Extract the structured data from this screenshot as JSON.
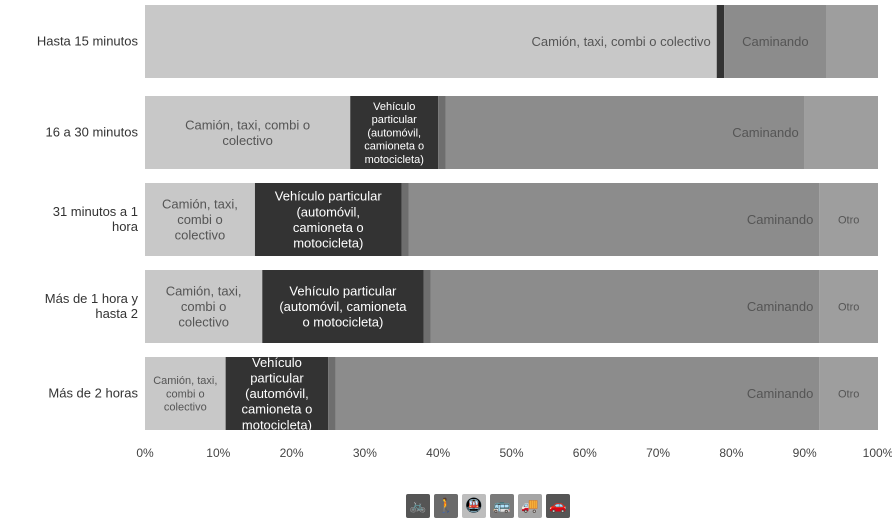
{
  "chart_data": {
    "type": "bar",
    "orientation": "horizontal",
    "stacked": true,
    "categories": [
      "Hasta 15 minutos",
      "16 a 30 minutos",
      "31 minutos a 1 hora",
      "Más de 1 hora y hasta 2",
      "Más de 2 horas"
    ],
    "series": [
      {
        "name": "Bicicleta",
        "color": "#e6e6e6",
        "values": [
          0,
          0,
          0,
          0,
          0
        ]
      },
      {
        "name": "Caminando",
        "color": "#d9d9d9",
        "values": [
          0,
          0,
          0,
          0,
          0
        ]
      },
      {
        "name": "Camión, taxi, combi o colectivo",
        "color": "#c8c8c8",
        "values": [
          78,
          28,
          15,
          16,
          11
        ],
        "label": "Camión, taxi, combi o colectivo",
        "show_label": [
          true,
          true,
          true,
          true,
          true
        ]
      },
      {
        "name": "Vehículo particular (automóvil, camioneta o motocicleta)",
        "color": "#333333",
        "values": [
          1,
          12,
          20,
          22,
          14
        ],
        "label": "Vehículo particular (automóvil, camioneta o motocicleta)",
        "show_label": [
          false,
          true,
          true,
          true,
          true
        ]
      },
      {
        "name": "Metro",
        "color": "#6e6e6e",
        "values": [
          0,
          1,
          1,
          1,
          1
        ]
      },
      {
        "name": "Caminando",
        "color": "#8c8c8c",
        "values": [
          14,
          49,
          56,
          53,
          66
        ],
        "label": "Caminando",
        "show_label": [
          true,
          true,
          true,
          true,
          true
        ]
      },
      {
        "name": "Otro",
        "color": "#9e9e9e",
        "values": [
          7,
          10,
          8,
          8,
          8
        ],
        "label": "Otro",
        "show_label": [
          false,
          false,
          true,
          true,
          true
        ]
      }
    ],
    "x_ticks": [
      "0%",
      "10%",
      "20%",
      "30%",
      "40%",
      "50%",
      "60%",
      "70%",
      "80%",
      "90%",
      "100%"
    ],
    "xlim": [
      0,
      100
    ],
    "grid": false,
    "legend": {
      "position": "bottom-center",
      "icons": [
        {
          "name": "bicycle-icon",
          "glyph": "🚲",
          "color": "#555555"
        },
        {
          "name": "walking-icon",
          "glyph": "🚶",
          "color": "#6a6a6a"
        },
        {
          "name": "metro-icon",
          "glyph": "🚇",
          "color": "#bdbdbd"
        },
        {
          "name": "bus-icon",
          "glyph": "🚌",
          "color": "#7a7a7a"
        },
        {
          "name": "truck-icon",
          "glyph": "🚚",
          "color": "#a5a5a5"
        },
        {
          "name": "car-icon",
          "glyph": "🚗",
          "color": "#555555"
        }
      ]
    }
  }
}
